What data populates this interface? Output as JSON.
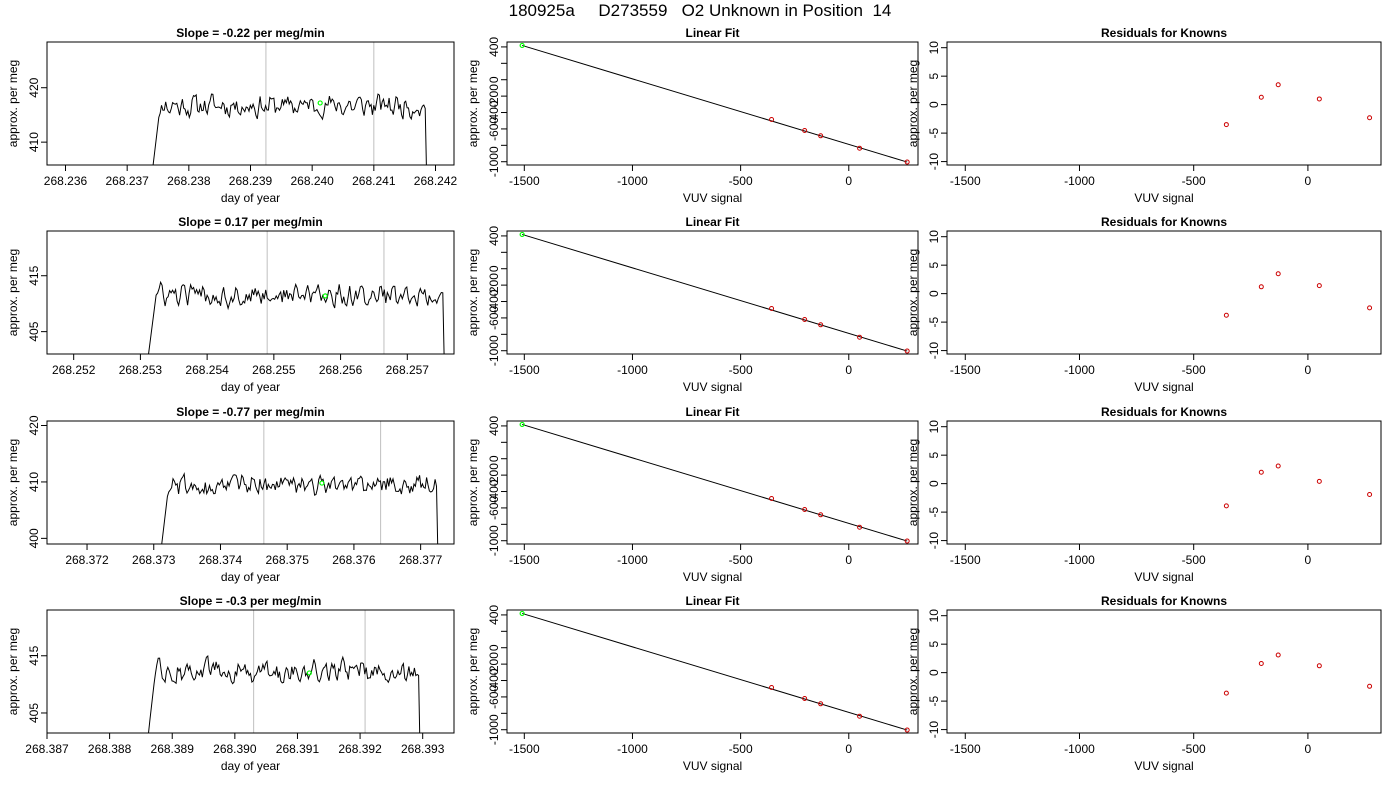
{
  "title": "180925a     D273559   O2 Unknown in Position  14",
  "colors": {
    "trace": "#000000",
    "marker_green": "#00ff00",
    "point_red": "#cc0000",
    "vline_gray": "#bfbfbf"
  },
  "chart_data": [
    {
      "type": "line",
      "row": 0,
      "title": "Slope =  -0.22  per meg/min",
      "xlabel": "day of year",
      "ylabel": "approx. per meg",
      "xlim": [
        268.2357,
        268.2423
      ],
      "ylim": [
        405.8,
        428.4
      ],
      "xticks": [
        "268.236",
        "268.237",
        "268.238",
        "268.239",
        "268.240",
        "268.241",
        "268.242"
      ],
      "xtick_values": [
        268.236,
        268.237,
        268.238,
        268.239,
        268.24,
        268.241,
        268.242
      ],
      "yticks": [
        "410",
        "420"
      ],
      "ytick_values": [
        410,
        420
      ],
      "vlines": [
        268.23925,
        268.241
      ],
      "green_point": {
        "x": 268.24013,
        "y": 417.2
      },
      "trace": {
        "x_start": 268.2374,
        "x_end": 268.2419,
        "base": 416.7,
        "amp": 3.3,
        "seed": 11
      }
    },
    {
      "type": "line",
      "row": 1,
      "title": "Slope =  0.17  per meg/min",
      "xlabel": "day of year",
      "ylabel": "approx. per meg",
      "xlim": [
        268.2516,
        268.2577
      ],
      "ylim": [
        401.0,
        423.0
      ],
      "xticks": [
        "268.252",
        "268.253",
        "268.254",
        "268.255",
        "268.256",
        "268.257"
      ],
      "xtick_values": [
        268.252,
        268.253,
        268.254,
        268.255,
        268.256,
        268.257
      ],
      "yticks": [
        "405",
        "415"
      ],
      "ytick_values": [
        405,
        415
      ],
      "vlines": [
        268.2549,
        268.25665
      ],
      "green_point": {
        "x": 268.25577,
        "y": 411.4
      },
      "trace": {
        "x_start": 268.2531,
        "x_end": 268.2576,
        "base": 411.5,
        "amp": 3.2,
        "seed": 23
      }
    },
    {
      "type": "line",
      "row": 2,
      "title": "Slope =  -0.77  per meg/min",
      "xlabel": "day of year",
      "ylabel": "approx. per meg",
      "xlim": [
        268.3714,
        268.3775
      ],
      "ylim": [
        399.0,
        420.8
      ],
      "xticks": [
        "268.372",
        "268.373",
        "268.374",
        "268.375",
        "268.376",
        "268.377"
      ],
      "xtick_values": [
        268.372,
        268.373,
        268.374,
        268.375,
        268.376,
        268.377
      ],
      "yticks": [
        "400",
        "410",
        "420"
      ],
      "ytick_values": [
        400,
        410,
        420
      ],
      "vlines": [
        268.37465,
        268.3764
      ],
      "green_point": {
        "x": 268.37552,
        "y": 409.8
      },
      "trace": {
        "x_start": 268.3731,
        "x_end": 268.3773,
        "base": 409.5,
        "amp": 3.0,
        "seed": 37
      }
    },
    {
      "type": "line",
      "row": 3,
      "title": "Slope =  -0.3  per meg/min",
      "xlabel": "day of year",
      "ylabel": "approx. per meg",
      "xlim": [
        268.387,
        268.3935
      ],
      "ylim": [
        401.5,
        423.0
      ],
      "xticks": [
        "268.387",
        "268.388",
        "268.389",
        "268.390",
        "268.391",
        "268.392",
        "268.393"
      ],
      "xtick_values": [
        268.387,
        268.388,
        268.389,
        268.39,
        268.391,
        268.392,
        268.393
      ],
      "yticks": [
        "405",
        "415"
      ],
      "ytick_values": [
        405,
        415
      ],
      "vlines": [
        268.3903,
        268.39208
      ],
      "green_point": {
        "x": 268.39119,
        "y": 412.0
      },
      "trace": {
        "x_start": 268.3886,
        "x_end": 268.393,
        "base": 412.3,
        "amp": 3.1,
        "seed": 53
      }
    },
    {
      "type": "scatter",
      "row": 0,
      "title": "Linear Fit",
      "xlabel": "VUV signal",
      "ylabel": "approx. per meg",
      "xlim": [
        -1580,
        320
      ],
      "ylim": [
        -1040,
        460
      ],
      "xticks": [
        "-1500",
        "-1000",
        "-500",
        "0"
      ],
      "xtick_values": [
        -1500,
        -1000,
        -500,
        0
      ],
      "yticks": [
        "-1000",
        "-600",
        "-200",
        "0",
        "400"
      ],
      "ytick_values": [
        -1000,
        -800,
        -600,
        -400,
        -200,
        0,
        200,
        400
      ],
      "ytick_labels": [
        "-1000",
        "",
        "-600",
        "-400",
        "-200",
        "0",
        "",
        "400"
      ],
      "points": [
        {
          "x": -357,
          "y": -485
        },
        {
          "x": -204,
          "y": -619
        },
        {
          "x": -130,
          "y": -684
        },
        {
          "x": 50,
          "y": -836
        },
        {
          "x": 270,
          "y": -1004
        }
      ],
      "unknown_point": {
        "x": -1510,
        "y": 418
      },
      "fit_line": {
        "x": [
          -1510,
          270
        ],
        "y": [
          418,
          -1004
        ]
      }
    },
    {
      "type": "scatter",
      "row": 1,
      "title": "Linear Fit",
      "xlabel": "VUV signal",
      "ylabel": "approx. per meg",
      "xlim": [
        -1580,
        320
      ],
      "ylim": [
        -1040,
        460
      ],
      "xticks": [
        "-1500",
        "-1000",
        "-500",
        "0"
      ],
      "xtick_values": [
        -1500,
        -1000,
        -500,
        0
      ],
      "yticks": [
        "-1000",
        "-600",
        "-200",
        "0",
        "400"
      ],
      "ytick_values": [
        -1000,
        -800,
        -600,
        -400,
        -200,
        0,
        200,
        400
      ],
      "ytick_labels": [
        "-1000",
        "",
        "-600",
        "-400",
        "-200",
        "0",
        "",
        "400"
      ],
      "points": [
        {
          "x": -357,
          "y": -485
        },
        {
          "x": -204,
          "y": -619
        },
        {
          "x": -130,
          "y": -684
        },
        {
          "x": 50,
          "y": -836
        },
        {
          "x": 270,
          "y": -1004
        }
      ],
      "unknown_point": {
        "x": -1510,
        "y": 418
      },
      "fit_line": {
        "x": [
          -1510,
          270
        ],
        "y": [
          418,
          -1004
        ]
      }
    },
    {
      "type": "scatter",
      "row": 2,
      "title": "Linear Fit",
      "xlabel": "VUV signal",
      "ylabel": "approx. per meg",
      "xlim": [
        -1580,
        320
      ],
      "ylim": [
        -1040,
        460
      ],
      "xticks": [
        "-1500",
        "-1000",
        "-500",
        "0"
      ],
      "xtick_values": [
        -1500,
        -1000,
        -500,
        0
      ],
      "yticks": [
        "-1000",
        "-600",
        "-200",
        "0",
        "400"
      ],
      "ytick_values": [
        -1000,
        -800,
        -600,
        -400,
        -200,
        0,
        200,
        400
      ],
      "ytick_labels": [
        "-1000",
        "",
        "-600",
        "-400",
        "-200",
        "0",
        "",
        "400"
      ],
      "points": [
        {
          "x": -357,
          "y": -485
        },
        {
          "x": -204,
          "y": -619
        },
        {
          "x": -130,
          "y": -684
        },
        {
          "x": 50,
          "y": -836
        },
        {
          "x": 270,
          "y": -1004
        }
      ],
      "unknown_point": {
        "x": -1510,
        "y": 418
      },
      "fit_line": {
        "x": [
          -1510,
          270
        ],
        "y": [
          418,
          -1004
        ]
      }
    },
    {
      "type": "scatter",
      "row": 3,
      "title": "Linear Fit",
      "xlabel": "VUV signal",
      "ylabel": "approx. per meg",
      "xlim": [
        -1580,
        320
      ],
      "ylim": [
        -1040,
        460
      ],
      "xticks": [
        "-1500",
        "-1000",
        "-500",
        "0"
      ],
      "xtick_values": [
        -1500,
        -1000,
        -500,
        0
      ],
      "yticks": [
        "-1000",
        "-600",
        "-200",
        "0",
        "400"
      ],
      "ytick_values": [
        -1000,
        -800,
        -600,
        -400,
        -200,
        0,
        200,
        400
      ],
      "ytick_labels": [
        "-1000",
        "",
        "-600",
        "-400",
        "-200",
        "0",
        "",
        "400"
      ],
      "points": [
        {
          "x": -357,
          "y": -485
        },
        {
          "x": -204,
          "y": -619
        },
        {
          "x": -130,
          "y": -684
        },
        {
          "x": 50,
          "y": -836
        },
        {
          "x": 270,
          "y": -1004
        }
      ],
      "unknown_point": {
        "x": -1510,
        "y": 418
      },
      "fit_line": {
        "x": [
          -1510,
          270
        ],
        "y": [
          418,
          -1004
        ]
      }
    },
    {
      "type": "scatter",
      "row": 0,
      "title": "Residuals for Knowns",
      "xlabel": "VUV signal",
      "ylabel": "approx. per meg",
      "xlim": [
        -1580,
        320
      ],
      "ylim": [
        -10.6,
        11.0
      ],
      "xticks": [
        "-1500",
        "-1000",
        "-500",
        "0"
      ],
      "xtick_values": [
        -1500,
        -1000,
        -500,
        0
      ],
      "yticks": [
        "-10",
        "-5",
        "0",
        "5",
        "10"
      ],
      "ytick_values": [
        -10,
        -5,
        0,
        5,
        10
      ],
      "points": [
        {
          "x": -357,
          "y": -3.5
        },
        {
          "x": -204,
          "y": 1.3
        },
        {
          "x": -130,
          "y": 3.5
        },
        {
          "x": 50,
          "y": 1.0
        },
        {
          "x": 270,
          "y": -2.3
        }
      ]
    },
    {
      "type": "scatter",
      "row": 1,
      "title": "Residuals for Knowns",
      "xlabel": "VUV signal",
      "ylabel": "approx. per meg",
      "xlim": [
        -1580,
        320
      ],
      "ylim": [
        -10.6,
        11.0
      ],
      "xticks": [
        "-1500",
        "-1000",
        "-500",
        "0"
      ],
      "xtick_values": [
        -1500,
        -1000,
        -500,
        0
      ],
      "yticks": [
        "-10",
        "-5",
        "0",
        "5",
        "10"
      ],
      "ytick_values": [
        -10,
        -5,
        0,
        5,
        10
      ],
      "points": [
        {
          "x": -357,
          "y": -3.8
        },
        {
          "x": -204,
          "y": 1.2
        },
        {
          "x": -130,
          "y": 3.5
        },
        {
          "x": 50,
          "y": 1.4
        },
        {
          "x": 270,
          "y": -2.5
        }
      ]
    },
    {
      "type": "scatter",
      "row": 2,
      "title": "Residuals for Knowns",
      "xlabel": "VUV signal",
      "ylabel": "approx. per meg",
      "xlim": [
        -1580,
        320
      ],
      "ylim": [
        -10.6,
        11.0
      ],
      "xticks": [
        "-1500",
        "-1000",
        "-500",
        "0"
      ],
      "xtick_values": [
        -1500,
        -1000,
        -500,
        0
      ],
      "yticks": [
        "-10",
        "-5",
        "0",
        "5",
        "10"
      ],
      "ytick_values": [
        -10,
        -5,
        0,
        5,
        10
      ],
      "points": [
        {
          "x": -357,
          "y": -3.9
        },
        {
          "x": -204,
          "y": 2.0
        },
        {
          "x": -130,
          "y": 3.1
        },
        {
          "x": 50,
          "y": 0.4
        },
        {
          "x": 270,
          "y": -1.9
        }
      ]
    },
    {
      "type": "scatter",
      "row": 3,
      "title": "Residuals for Knowns",
      "xlabel": "VUV signal",
      "ylabel": "approx. per meg",
      "xlim": [
        -1580,
        320
      ],
      "ylim": [
        -10.6,
        11.0
      ],
      "xticks": [
        "-1500",
        "-1000",
        "-500",
        "0"
      ],
      "xtick_values": [
        -1500,
        -1000,
        -500,
        0
      ],
      "yticks": [
        "-10",
        "-5",
        "0",
        "5",
        "10"
      ],
      "ytick_values": [
        -10,
        -5,
        0,
        5,
        10
      ],
      "points": [
        {
          "x": -357,
          "y": -3.6
        },
        {
          "x": -204,
          "y": 1.6
        },
        {
          "x": -130,
          "y": 3.1
        },
        {
          "x": 50,
          "y": 1.2
        },
        {
          "x": 270,
          "y": -2.4
        }
      ]
    }
  ]
}
